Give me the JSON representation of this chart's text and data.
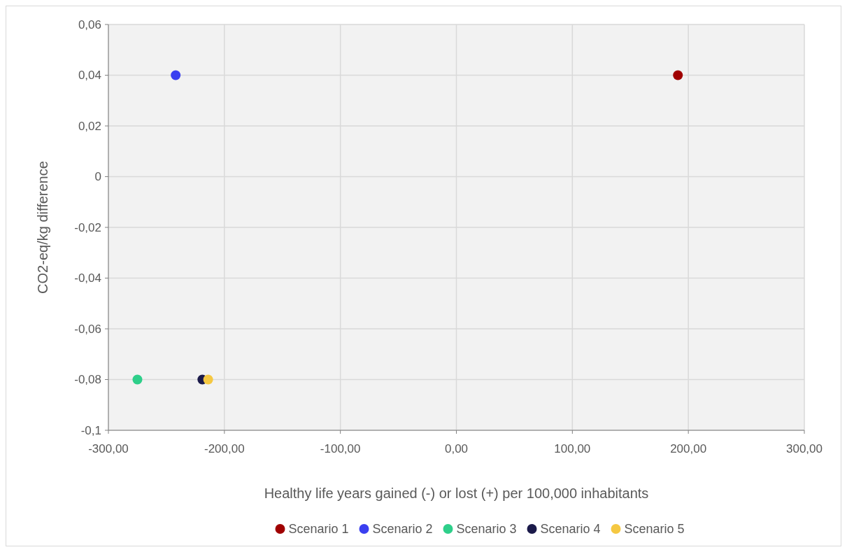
{
  "chart_data": {
    "type": "scatter",
    "xlabel": "Healthy life years gained (-) or lost (+) per 100,000 inhabitants",
    "ylabel": "CO2-eq/kg difference",
    "xlim": [
      -300,
      300
    ],
    "xticks": [
      {
        "value": -300,
        "label": "-300,00"
      },
      {
        "value": -200,
        "label": "-200,00"
      },
      {
        "value": -100,
        "label": "-100,00"
      },
      {
        "value": 0,
        "label": "0,00"
      },
      {
        "value": 100,
        "label": "100,00"
      },
      {
        "value": 200,
        "label": "200,00"
      },
      {
        "value": 300,
        "label": "300,00"
      }
    ],
    "ylim": [
      -0.1,
      0.06
    ],
    "yticks": [
      {
        "value": -0.1,
        "label": "-0,1"
      },
      {
        "value": -0.08,
        "label": "-0,08"
      },
      {
        "value": -0.06,
        "label": "-0,06"
      },
      {
        "value": -0.04,
        "label": "-0,04"
      },
      {
        "value": -0.02,
        "label": "-0,02"
      },
      {
        "value": 0,
        "label": "0"
      },
      {
        "value": 0.02,
        "label": "0,02"
      },
      {
        "value": 0.04,
        "label": "0,04"
      },
      {
        "value": 0.06,
        "label": "0,06"
      }
    ],
    "grid": true,
    "legend": "bottom",
    "marker": "circle",
    "series": [
      {
        "name": "Scenario 1",
        "color": "#a00000",
        "x": [
          191
        ],
        "values": [
          0.04
        ]
      },
      {
        "name": "Scenario 2",
        "color": "#3a3ff0",
        "x": [
          -242
        ],
        "values": [
          0.04
        ]
      },
      {
        "name": "Scenario 3",
        "color": "#2ecf8a",
        "x": [
          -275
        ],
        "values": [
          -0.08
        ]
      },
      {
        "name": "Scenario 4",
        "color": "#1b1a4a",
        "x": [
          -219
        ],
        "values": [
          -0.08
        ]
      },
      {
        "name": "Scenario 5",
        "color": "#f5c842",
        "x": [
          -214
        ],
        "values": [
          -0.08
        ]
      }
    ]
  }
}
